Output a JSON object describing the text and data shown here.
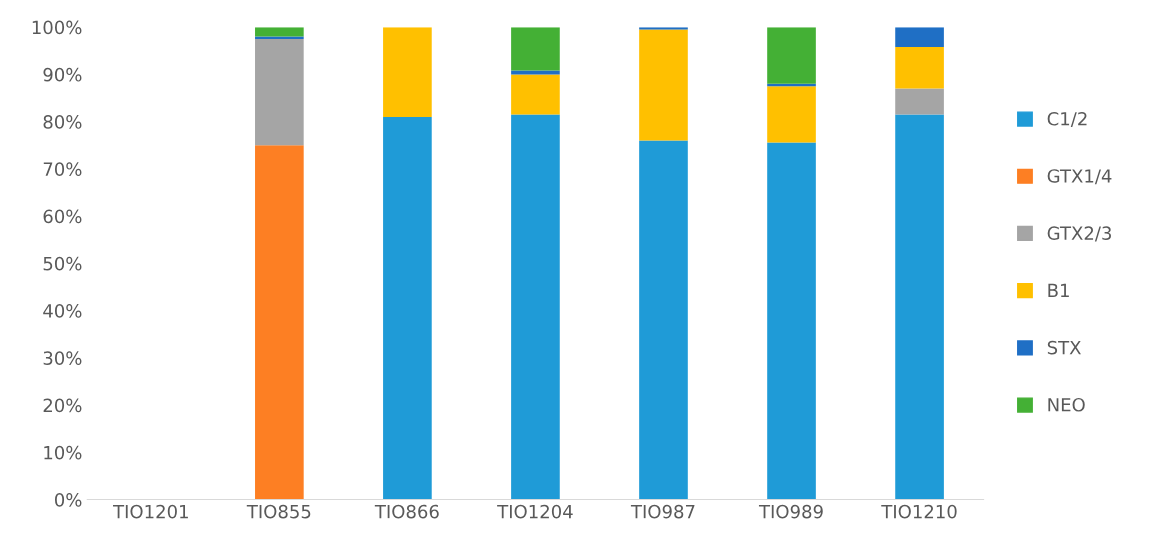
{
  "chart_data": {
    "type": "bar",
    "stacked": true,
    "categories": [
      "TIO1201",
      "TIO855",
      "TIO866",
      "TIO1204",
      "TIO987",
      "TIO989",
      "TIO1210"
    ],
    "series": [
      {
        "name": "C1/2",
        "color": "#1f9bd7",
        "values": [
          0,
          0,
          81,
          81.5,
          76,
          75.6,
          81.5
        ]
      },
      {
        "name": "GTX1/4",
        "color": "#fd7f23",
        "values": [
          0,
          75,
          0,
          0,
          0,
          0,
          0
        ]
      },
      {
        "name": "GTX2/3",
        "color": "#a5a5a5",
        "values": [
          0,
          22.5,
          0,
          0,
          0,
          0,
          5.5
        ]
      },
      {
        "name": "B1",
        "color": "#ffc000",
        "values": [
          0,
          0,
          19,
          8.5,
          23.5,
          11.9,
          8.8
        ]
      },
      {
        "name": "STX",
        "color": "#1f6fc5",
        "values": [
          0,
          0.5,
          0,
          0.8,
          0.5,
          0.5,
          4.2
        ]
      },
      {
        "name": "NEO",
        "color": "#44b035",
        "values": [
          0,
          2,
          0,
          9.2,
          0,
          12,
          0
        ]
      }
    ],
    "ylim": [
      0,
      100
    ],
    "yticks": [
      {
        "value": 0,
        "label": "0%"
      },
      {
        "value": 10,
        "label": "10%"
      },
      {
        "value": 20,
        "label": "20%"
      },
      {
        "value": 30,
        "label": "30%"
      },
      {
        "value": 40,
        "label": "40%"
      },
      {
        "value": 50,
        "label": "50%"
      },
      {
        "value": 60,
        "label": "60%"
      },
      {
        "value": 70,
        "label": "70%"
      },
      {
        "value": 80,
        "label": "80%"
      },
      {
        "value": 90,
        "label": "90%"
      },
      {
        "value": 100,
        "label": "100%"
      }
    ],
    "legend": "right",
    "grid": false
  }
}
